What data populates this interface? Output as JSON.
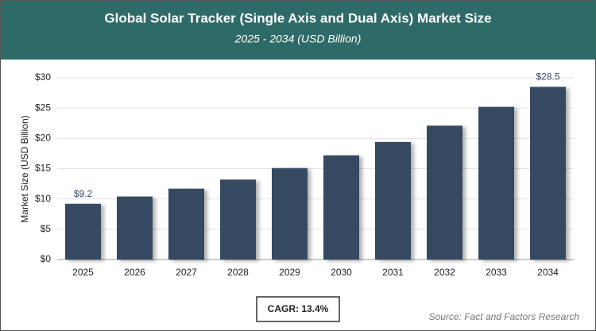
{
  "chart_data": {
    "type": "bar",
    "title": "Global Solar Tracker (Single Axis and Dual Axis) Market Size",
    "subtitle": "2025 - 2034 (USD Billion)",
    "y_label": "Market Size (USD Billion)",
    "categories": [
      "2025",
      "2026",
      "2027",
      "2028",
      "2029",
      "2030",
      "2031",
      "2032",
      "2033",
      "2034"
    ],
    "values": [
      9.2,
      10.4,
      11.7,
      13.2,
      15.1,
      17.2,
      19.4,
      22.1,
      25.2,
      28.5
    ],
    "value_labels": [
      "$9.2",
      null,
      null,
      null,
      null,
      null,
      null,
      null,
      null,
      "$28.5"
    ],
    "color": "#364960",
    "ylim": [
      0,
      30
    ],
    "yticks": [
      {
        "value": 0,
        "label": "$0"
      },
      {
        "value": 5,
        "label": "$5"
      },
      {
        "value": 10,
        "label": "$10"
      },
      {
        "value": 15,
        "label": "$15"
      },
      {
        "value": 20,
        "label": "$20"
      },
      {
        "value": 25,
        "label": "$25"
      },
      {
        "value": 30,
        "label": "$30"
      }
    ],
    "grid": true,
    "annotation": "CAGR: 13.4%",
    "source": "Source: Fact and Factors Research"
  }
}
